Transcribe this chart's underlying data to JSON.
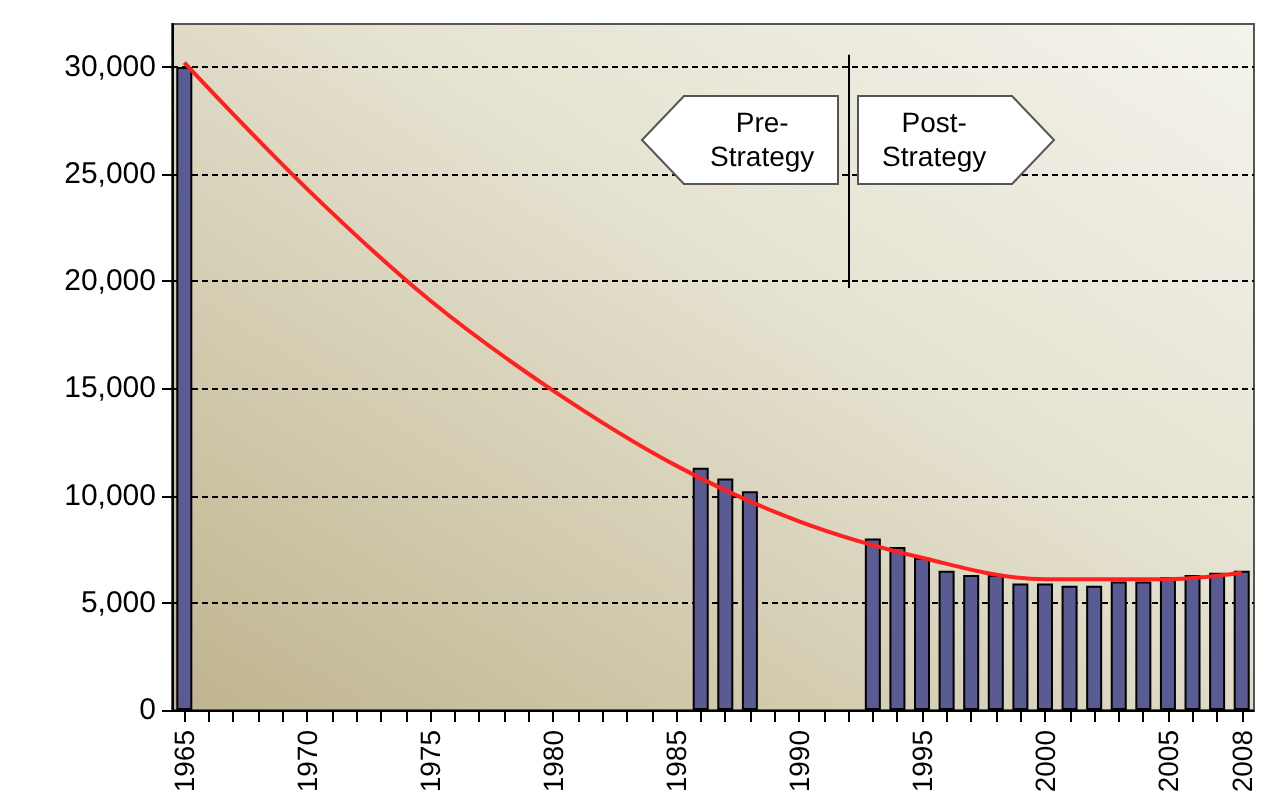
{
  "chart_data": {
    "type": "bar",
    "x": [
      1965,
      1986,
      1987,
      1988,
      1993,
      1994,
      1995,
      1996,
      1997,
      1998,
      1999,
      2000,
      2001,
      2002,
      2003,
      2004,
      2005,
      2006,
      2007,
      2008
    ],
    "series": [
      {
        "color": "#5b5b94",
        "values": [
          30000,
          11300,
          10800,
          10200,
          8000,
          7600,
          7100,
          6500,
          6300,
          6300,
          5900,
          5900,
          5800,
          5800,
          6000,
          6000,
          6200,
          6300,
          6400,
          6500
        ]
      },
      {
        "type": "line",
        "color": "#ff2020",
        "x": [
          1965,
          1970,
          1975,
          1980,
          1985,
          1990,
          1995,
          2000,
          2005,
          2008
        ],
        "values": [
          30200,
          24300,
          19100,
          14900,
          11400,
          8800,
          7100,
          6100,
          6100,
          6400
        ]
      }
    ],
    "xlim": [
      1964.5,
      2008.5
    ],
    "xticks": [
      1965,
      {
        "value": 1966,
        "label": null
      },
      {
        "value": 1967,
        "label": null
      },
      {
        "value": 1968,
        "label": null
      },
      {
        "value": 1969,
        "label": null
      },
      1970,
      {
        "value": 1971,
        "label": null
      },
      {
        "value": 1972,
        "label": null
      },
      {
        "value": 1973,
        "label": null
      },
      {
        "value": 1974,
        "label": null
      },
      1975,
      {
        "value": 1976,
        "label": null
      },
      {
        "value": 1977,
        "label": null
      },
      {
        "value": 1978,
        "label": null
      },
      {
        "value": 1979,
        "label": null
      },
      1980,
      {
        "value": 1981,
        "label": null
      },
      {
        "value": 1982,
        "label": null
      },
      {
        "value": 1983,
        "label": null
      },
      {
        "value": 1984,
        "label": null
      },
      1985,
      {
        "value": 1986,
        "label": null
      },
      {
        "value": 1987,
        "label": null
      },
      {
        "value": 1988,
        "label": null
      },
      {
        "value": 1989,
        "label": null
      },
      1990,
      {
        "value": 1991,
        "label": null
      },
      {
        "value": 1992,
        "label": null
      },
      {
        "value": 1993,
        "label": null
      },
      {
        "value": 1994,
        "label": null
      },
      1995,
      {
        "value": 1996,
        "label": null
      },
      {
        "value": 1997,
        "label": null
      },
      {
        "value": 1998,
        "label": null
      },
      {
        "value": 1999,
        "label": null
      },
      2000,
      {
        "value": 2001,
        "label": null
      },
      {
        "value": 2002,
        "label": null
      },
      {
        "value": 2003,
        "label": null
      },
      {
        "value": 2004,
        "label": null
      },
      2005,
      {
        "value": 2006,
        "label": null
      },
      {
        "value": 2007,
        "label": null
      },
      2008
    ],
    "ylim": [
      0,
      32000
    ],
    "yticks": [
      0,
      {
        "value": 5000,
        "label": "5,000"
      },
      {
        "value": 10000,
        "label": "10,000"
      },
      {
        "value": 15000,
        "label": "15,000"
      },
      {
        "value": 20000,
        "label": "20,000"
      },
      {
        "value": 25000,
        "label": "25,000"
      },
      {
        "value": 30000,
        "label": "30,000"
      }
    ],
    "grid": "y",
    "ref_lines": [
      {
        "axis": "x",
        "value": 1992,
        "color": "#000000"
      }
    ],
    "annotations": [
      "Pre-\nStrategy",
      "Post-\nStrategy"
    ]
  }
}
